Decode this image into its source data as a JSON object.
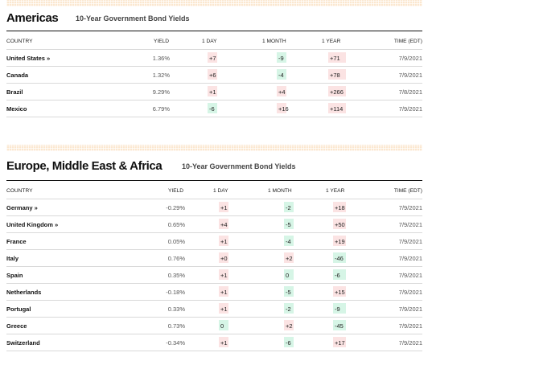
{
  "sections": [
    {
      "title": "Americas",
      "subtitle": "10-Year Government Bond Yields",
      "columns": {
        "country": "COUNTRY",
        "yield": "YIELD",
        "day": "1 DAY",
        "month": "1 MONTH",
        "year": "1 YEAR",
        "time": "TIME (EDT)"
      },
      "rows": [
        {
          "country": "United States »",
          "yield": "1.36%",
          "day": "+7",
          "month": "-9",
          "year": "+71",
          "time": "7/9/2021"
        },
        {
          "country": "Canada",
          "yield": "1.32%",
          "day": "+6",
          "month": "-4",
          "year": "+78",
          "time": "7/9/2021"
        },
        {
          "country": "Brazil",
          "yield": "9.29%",
          "day": "+1",
          "month": "+4",
          "year": "+266",
          "time": "7/8/2021"
        },
        {
          "country": "Mexico",
          "yield": "6.79%",
          "day": "-6",
          "month": "+16",
          "year": "+114",
          "time": "7/9/2021"
        }
      ]
    },
    {
      "title": "Europe, Middle East & Africa",
      "subtitle": "10-Year Government Bond Yields",
      "columns": {
        "country": "COUNTRY",
        "yield": "YIELD",
        "day": "1 DAY",
        "month": "1 MONTH",
        "year": "1 YEAR",
        "time": "TIME (EDT)"
      },
      "rows": [
        {
          "country": "Germany »",
          "yield": "-0.29%",
          "day": "+1",
          "month": "-2",
          "year": "+18",
          "time": "7/9/2021"
        },
        {
          "country": "United Kingdom »",
          "yield": "0.65%",
          "day": "+4",
          "month": "-5",
          "year": "+50",
          "time": "7/9/2021"
        },
        {
          "country": "France",
          "yield": "0.05%",
          "day": "+1",
          "month": "-4",
          "year": "+19",
          "time": "7/9/2021"
        },
        {
          "country": "Italy",
          "yield": "0.76%",
          "day": "+0",
          "month": "+2",
          "year": "-46",
          "time": "7/9/2021"
        },
        {
          "country": "Spain",
          "yield": "0.35%",
          "day": "+1",
          "month": "0",
          "year": "-6",
          "time": "7/9/2021"
        },
        {
          "country": "Netherlands",
          "yield": "-0.18%",
          "day": "+1",
          "month": "-5",
          "year": "+15",
          "time": "7/9/2021"
        },
        {
          "country": "Portugal",
          "yield": "0.33%",
          "day": "+1",
          "month": "-2",
          "year": "-9",
          "time": "7/9/2021"
        },
        {
          "country": "Greece",
          "yield": "0.73%",
          "day": "0",
          "month": "+2",
          "year": "-45",
          "time": "7/9/2021"
        },
        {
          "country": "Switzerland",
          "yield": "-0.34%",
          "day": "+1",
          "month": "-6",
          "year": "+17",
          "time": "7/9/2021"
        }
      ]
    }
  ],
  "colors": {
    "increase_bg": "#fbe3e3",
    "decrease_bg": "#d6f5e6",
    "band": "#fbe7cf"
  }
}
